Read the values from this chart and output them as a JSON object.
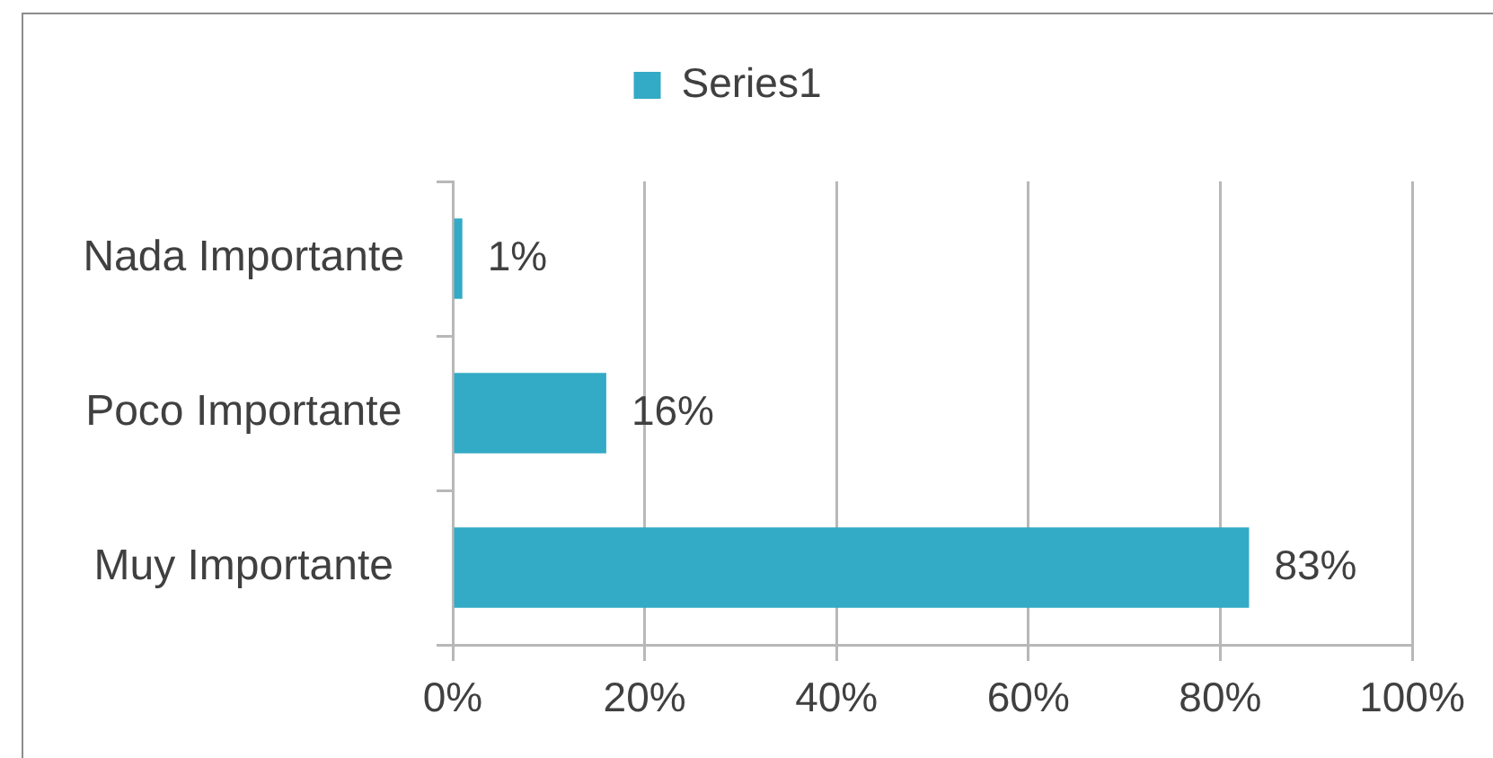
{
  "chart_data": {
    "type": "bar",
    "orientation": "horizontal",
    "categories": [
      "Nada Importante",
      "Poco Importante",
      "Muy Importante"
    ],
    "series": [
      {
        "name": "Series1",
        "color": "#33aac6",
        "values": [
          1,
          16,
          83
        ],
        "value_labels": [
          "1%",
          "16%",
          "83%"
        ]
      }
    ],
    "xlim": [
      0,
      100
    ],
    "xticks": [
      {
        "value": 0,
        "label": "0%"
      },
      {
        "value": 20,
        "label": "20%"
      },
      {
        "value": 40,
        "label": "40%"
      },
      {
        "value": 60,
        "label": "60%"
      },
      {
        "value": 80,
        "label": "80%"
      },
      {
        "value": 100,
        "label": "100%"
      }
    ],
    "grid": "x",
    "legend": "top"
  }
}
